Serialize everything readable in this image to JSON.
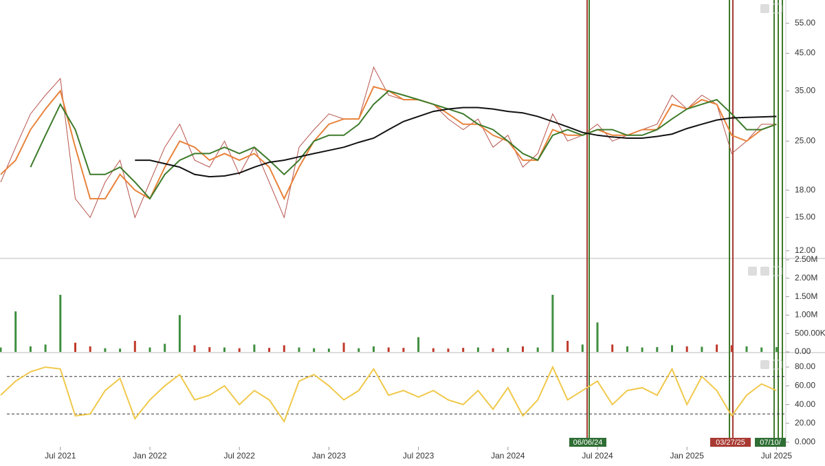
{
  "chart_data": [
    {
      "type": "line",
      "log_scale": true,
      "x": [
        "Mar 2021",
        "Apr 2021",
        "May 2021",
        "Jun 2021",
        "Jul 2021",
        "Aug 2021",
        "Sep 2021",
        "Oct 2021",
        "Nov 2021",
        "Dec 2021",
        "Jan 2022",
        "Feb 2022",
        "Mar 2022",
        "Apr 2022",
        "May 2022",
        "Jun 2022",
        "Jul 2022",
        "Aug 2022",
        "Sep 2022",
        "Oct 2022",
        "Nov 2022",
        "Dec 2022",
        "Jan 2023",
        "Feb 2023",
        "Mar 2023",
        "Apr 2023",
        "May 2023",
        "Jun 2023",
        "Jul 2023",
        "Aug 2023",
        "Sep 2023",
        "Oct 2023",
        "Nov 2023",
        "Dec 2023",
        "Jan 2024",
        "Feb 2024",
        "Mar 2024",
        "Apr 2024",
        "May 2024",
        "Jun 2024",
        "Jul 2024",
        "Aug 2024",
        "Sep 2024",
        "Oct 2024",
        "Nov 2024",
        "Dec 2024",
        "Jan 2025",
        "Feb 2025",
        "Mar 2025",
        "Apr 2025",
        "May 2025",
        "Jun 2025",
        "Jul 2025"
      ],
      "xticks": [
        "Jul 2021",
        "Jan 2022",
        "Jul 2022",
        "Jan 2023",
        "Jul 2023",
        "Jan 2024",
        "Jul 2024",
        "Jan 2025",
        "Jul 2025"
      ],
      "ylim": [
        11.4,
        64.3
      ],
      "yticks": [
        {
          "value": 55,
          "label": "55.00"
        },
        {
          "value": 45,
          "label": "45.00"
        },
        {
          "value": 35,
          "label": "35.00"
        },
        {
          "value": 25,
          "label": "25.00"
        },
        {
          "value": 18,
          "label": "18.00"
        },
        {
          "value": 15,
          "label": "15.00"
        },
        {
          "value": 12,
          "label": "12.00"
        }
      ],
      "series": [
        {
          "color": "#b5524a",
          "values": [
            19,
            24,
            30,
            34,
            38,
            17,
            15,
            19,
            22,
            15,
            19,
            24,
            28,
            22,
            21,
            25,
            20,
            24,
            19,
            15,
            24,
            27,
            30,
            29,
            29,
            41,
            34,
            33,
            33,
            32,
            29,
            27,
            29,
            24,
            26,
            21,
            23,
            30,
            25,
            26,
            28,
            25,
            26,
            27,
            28,
            34,
            31,
            34,
            32,
            23,
            25,
            28,
            28
          ]
        },
        {
          "color": "#e8823a",
          "values": [
            20,
            22,
            27,
            31,
            35,
            24,
            17,
            17,
            20,
            18,
            17,
            21,
            25,
            24,
            22,
            23,
            22,
            23,
            21,
            17,
            21,
            25,
            28,
            29,
            29,
            36,
            35,
            33,
            33,
            32,
            30,
            28,
            28,
            26,
            25,
            22,
            22,
            27,
            26,
            26,
            27,
            26,
            26,
            27,
            27,
            32,
            31,
            33,
            32,
            26,
            25,
            27,
            28
          ]
        },
        {
          "color": "#3d7a2a",
          "values": [
            null,
            null,
            21,
            26,
            32,
            27,
            20,
            20,
            21,
            19,
            17,
            20,
            22,
            23,
            23,
            24,
            23,
            24,
            22,
            20,
            22,
            25,
            26,
            26,
            28,
            32,
            35,
            34,
            33,
            32,
            31,
            30,
            28,
            27,
            25,
            23,
            22,
            26,
            27,
            26,
            27,
            27,
            26,
            26,
            27,
            29,
            31,
            32,
            33,
            30,
            27,
            27,
            28
          ]
        },
        {
          "color": "#111111",
          "values": [
            null,
            null,
            null,
            null,
            null,
            null,
            null,
            null,
            null,
            22,
            22,
            21.5,
            21,
            20,
            19.7,
            19.8,
            20.2,
            21,
            21.7,
            22,
            22.5,
            23,
            23.5,
            24,
            24.8,
            25.5,
            27,
            28.5,
            29.5,
            30.5,
            31,
            31.3,
            31.3,
            31,
            30.5,
            30.2,
            29.5,
            28.5,
            27.5,
            26.5,
            26,
            25.7,
            25.5,
            25.5,
            25.8,
            26.2,
            27.2,
            28,
            28.8,
            29.2,
            29.3,
            29.4,
            29.5
          ]
        }
      ],
      "markers": [
        {
          "label": "06/06/24",
          "color": "#2f6e34"
        },
        {
          "label": "03/27/25",
          "color": "#a83a33"
        },
        {
          "label": "07/10/",
          "color": "#2f6e34"
        }
      ]
    },
    {
      "type": "bar",
      "colors": {
        "up": "#3f8f3f",
        "down": "#c0392b"
      },
      "ylim": [
        0,
        2500000
      ],
      "yticks": [
        {
          "value": 2500000,
          "label": "2.50M"
        },
        {
          "value": 2000000,
          "label": "2.00M"
        },
        {
          "value": 1500000,
          "label": "1.50M"
        },
        {
          "value": 1000000,
          "label": "1.00M"
        },
        {
          "value": 500000,
          "label": "500.00K"
        },
        {
          "value": 0,
          "label": "0.00"
        }
      ],
      "values": [
        120000,
        1100000,
        150000,
        200000,
        1550000,
        250000,
        150000,
        100000,
        90000,
        300000,
        120000,
        220000,
        1000000,
        180000,
        130000,
        120000,
        100000,
        200000,
        110000,
        180000,
        120000,
        100000,
        90000,
        250000,
        100000,
        150000,
        120000,
        110000,
        400000,
        100000,
        90000,
        110000,
        120000,
        100000,
        110000,
        150000,
        120000,
        1550000,
        300000,
        200000,
        800000,
        200000,
        150000,
        120000,
        130000,
        180000,
        150000,
        140000,
        200000,
        180000,
        150000,
        120000,
        130000
      ]
    },
    {
      "type": "line",
      "ylim": [
        -5,
        92.5
      ],
      "yticks": [
        {
          "value": 80,
          "label": "80.00"
        },
        {
          "value": 60,
          "label": "60.00"
        },
        {
          "value": 40,
          "label": "40.00"
        },
        {
          "value": 20,
          "label": "20.00"
        },
        {
          "value": 0,
          "label": "0.000"
        }
      ],
      "levels": [
        70,
        30
      ],
      "series": [
        {
          "color": "#f0c84a",
          "values": [
            50,
            65,
            75,
            80,
            78,
            28,
            30,
            55,
            68,
            25,
            45,
            60,
            72,
            45,
            50,
            60,
            40,
            55,
            45,
            22,
            65,
            72,
            60,
            45,
            55,
            78,
            50,
            55,
            48,
            55,
            45,
            40,
            55,
            35,
            58,
            28,
            45,
            80,
            45,
            55,
            65,
            40,
            55,
            58,
            50,
            78,
            40,
            70,
            55,
            28,
            50,
            62,
            55
          ]
        }
      ]
    }
  ]
}
